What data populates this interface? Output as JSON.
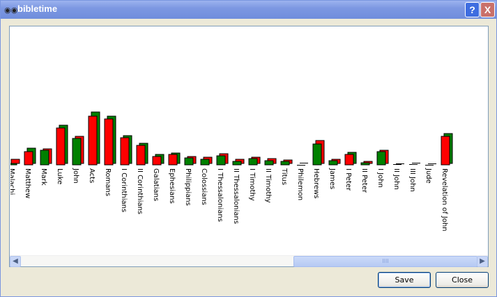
{
  "window": {
    "title": "bibletime",
    "app_icon": "binoculars-icon",
    "help_label": "?",
    "close_label": "X"
  },
  "buttons": {
    "save": "Save",
    "close": "Close"
  },
  "scrollbar": {
    "left": "<",
    "right": ">",
    "grip": "IIII"
  },
  "colors": {
    "red": "#ff0000",
    "green": "#008000"
  },
  "chart_data": {
    "type": "bar",
    "categories": [
      "Malachi",
      "Matthew",
      "Mark",
      "Luke",
      "John",
      "Acts",
      "Romans",
      "I Corinthians",
      "II Corinthians",
      "Galatians",
      "Ephesians",
      "Philippians",
      "Colossians",
      "I Thessalonians",
      "II Thessalonians",
      "I Timothy",
      "II Timothy",
      "Titus",
      "Philemon",
      "Hebrews",
      "James",
      "I Peter",
      "II Peter",
      "I John",
      "II John",
      "III John",
      "Jude",
      "Revelation of John"
    ],
    "front_colors": [
      "green",
      "red",
      "green",
      "red",
      "green",
      "red",
      "red",
      "red",
      "red",
      "red",
      "red",
      "green",
      "green",
      "green",
      "green",
      "green",
      "green",
      "green",
      "black",
      "green",
      "green",
      "red",
      "green",
      "green",
      "black",
      "black",
      "black",
      "red"
    ],
    "series": [
      {
        "values": [
          2,
          19,
          21,
          53,
          38,
          70,
          66,
          39,
          28,
          12,
          15,
          10,
          8,
          13,
          5,
          9,
          6,
          5,
          0,
          30,
          6,
          15,
          3,
          19,
          1,
          1,
          0,
          41
        ]
      },
      {
        "values": [
          6,
          22,
          21,
          55,
          39,
          74,
          68,
          40,
          29,
          13,
          15,
          10,
          9,
          14,
          6,
          9,
          7,
          5,
          1,
          33,
          6,
          16,
          3,
          19,
          0,
          1,
          0,
          43
        ]
      }
    ],
    "xlabel": "",
    "ylabel": "",
    "grid": false
  }
}
